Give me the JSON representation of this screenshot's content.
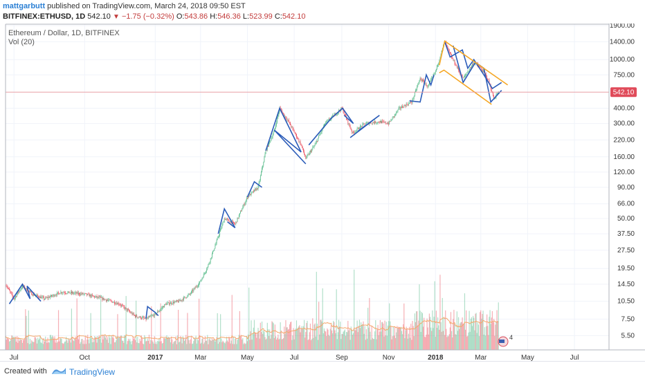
{
  "header": {
    "author": "mattgarbutt",
    "published": "published on TradingView.com, March 24, 2018 09:50 EST",
    "symbol": "BITFINEX:ETHUSD, 1D",
    "last": "542.10",
    "change": "−1.75 (−0.32%)",
    "o_label": "O:",
    "o": "543.86",
    "h_label": "H:",
    "h": "546.36",
    "l_label": "L:",
    "l": "523.99",
    "c_label": "C:",
    "c": "542.10"
  },
  "legend": {
    "instrument": "Ethereum / Dollar, 1D, BITFINEX",
    "volume": "Vol (20)"
  },
  "price_badge": "542.10",
  "event_badge": "4",
  "footer": {
    "created": "Created with",
    "brand": "TradingView"
  },
  "colors": {
    "up": "#53b987",
    "down": "#eb4d5c",
    "pattern": "#2a5bb8",
    "channel": "#f5a623",
    "badge": "#e04b5a",
    "ma": "#f4a86b"
  },
  "chart_data": {
    "type": "line",
    "title": "Ethereum / Dollar, 1D, BITFINEX",
    "y_scale": "log",
    "ylim": [
      4.2,
      1950
    ],
    "y_ticks": [
      1900,
      1400,
      1000,
      750,
      542.1,
      400,
      300,
      220,
      160,
      120,
      90,
      66,
      50,
      37.5,
      27.5,
      19.5,
      14.5,
      10.5,
      7.5,
      5.5
    ],
    "x_ticks": [
      "Jul",
      "Oct",
      "2017",
      "Mar",
      "May",
      "Jul",
      "Sep",
      "Nov",
      "2018",
      "Mar",
      "May",
      "Jul"
    ],
    "x_tick_dates": [
      "2016-07-01",
      "2016-10-01",
      "2017-01-01",
      "2017-03-01",
      "2017-05-01",
      "2017-07-01",
      "2017-09-01",
      "2017-11-01",
      "2018-01-01",
      "2018-03-01",
      "2018-05-01",
      "2018-07-01"
    ],
    "last_price": 542.1,
    "price_path": [
      [
        "2016-06-20",
        14.5
      ],
      [
        "2016-07-01",
        11
      ],
      [
        "2016-07-12",
        14
      ],
      [
        "2016-07-25",
        12
      ],
      [
        "2016-08-10",
        11
      ],
      [
        "2016-09-01",
        12.5
      ],
      [
        "2016-10-01",
        12
      ],
      [
        "2016-10-25",
        11
      ],
      [
        "2016-11-15",
        10
      ],
      [
        "2016-12-05",
        8
      ],
      [
        "2016-12-20",
        7.5
      ],
      [
        "2017-01-01",
        8.2
      ],
      [
        "2017-01-15",
        10
      ],
      [
        "2017-02-01",
        10.5
      ],
      [
        "2017-02-15",
        12
      ],
      [
        "2017-02-28",
        15
      ],
      [
        "2017-03-10",
        20
      ],
      [
        "2017-03-20",
        30
      ],
      [
        "2017-04-01",
        50
      ],
      [
        "2017-04-15",
        45
      ],
      [
        "2017-05-01",
        75
      ],
      [
        "2017-05-15",
        90
      ],
      [
        "2017-05-25",
        180
      ],
      [
        "2017-06-05",
        260
      ],
      [
        "2017-06-12",
        400
      ],
      [
        "2017-06-25",
        300
      ],
      [
        "2017-07-10",
        200
      ],
      [
        "2017-07-16",
        155
      ],
      [
        "2017-07-28",
        200
      ],
      [
        "2017-08-10",
        300
      ],
      [
        "2017-09-01",
        400
      ],
      [
        "2017-09-15",
        250
      ],
      [
        "2017-10-01",
        300
      ],
      [
        "2017-10-20",
        310
      ],
      [
        "2017-11-01",
        300
      ],
      [
        "2017-11-15",
        400
      ],
      [
        "2017-12-01",
        450
      ],
      [
        "2017-12-12",
        700
      ],
      [
        "2017-12-22",
        600
      ],
      [
        "2018-01-01",
        800
      ],
      [
        "2018-01-13",
        1400
      ],
      [
        "2018-01-20",
        1100
      ],
      [
        "2018-02-06",
        700
      ],
      [
        "2018-02-20",
        950
      ],
      [
        "2018-03-01",
        850
      ],
      [
        "2018-03-10",
        700
      ],
      [
        "2018-03-18",
        480
      ],
      [
        "2018-03-24",
        542.1
      ]
    ],
    "pattern_zigzags": [
      [
        [
          "2016-06-25",
          10
        ],
        [
          "2016-07-12",
          14.5
        ],
        [
          "2016-07-22",
          11
        ],
        [
          "2016-07-18",
          14
        ],
        [
          "2016-08-05",
          10.5
        ]
      ],
      [
        [
          "2016-12-20",
          7.6
        ],
        [
          "2016-12-22",
          9.5
        ],
        [
          "2017-01-01",
          8.5
        ],
        [
          "2017-01-05",
          8
        ]
      ],
      [
        [
          "2017-03-24",
          37.5
        ],
        [
          "2017-04-01",
          60
        ],
        [
          "2017-04-15",
          42
        ],
        [
          "2017-04-05",
          47
        ]
      ],
      [
        [
          "2017-05-01",
          75
        ],
        [
          "2017-05-10",
          100
        ],
        [
          "2017-05-20",
          90
        ]
      ],
      [
        [
          "2017-05-25",
          180
        ],
        [
          "2017-06-12",
          400
        ],
        [
          "2017-07-10",
          175
        ],
        [
          "2017-06-05",
          265
        ],
        [
          "2017-07-16",
          140
        ]
      ],
      [
        [
          "2017-07-20",
          200
        ],
        [
          "2017-08-18",
          330
        ],
        [
          "2017-09-02",
          400
        ],
        [
          "2017-09-16",
          300
        ],
        [
          "2017-09-04",
          350
        ]
      ],
      [
        [
          "2017-09-12",
          230
        ],
        [
          "2017-10-20",
          350
        ],
        [
          "2017-09-22",
          260
        ]
      ],
      [
        [
          "2017-11-28",
          460
        ],
        [
          "2017-12-12",
          450
        ],
        [
          "2017-12-20",
          750
        ],
        [
          "2017-12-26",
          620
        ],
        [
          "2017-12-30",
          750
        ]
      ],
      [
        [
          "2018-01-13",
          1400
        ],
        [
          "2018-01-20",
          1050
        ],
        [
          "2018-02-05",
          1200
        ],
        [
          "2018-02-12",
          850
        ],
        [
          "2018-02-20",
          1000
        ],
        [
          "2018-03-05",
          750
        ],
        [
          "2018-03-16",
          580
        ],
        [
          "2018-03-28",
          650
        ]
      ],
      [
        [
          "2018-01-24",
          1300
        ],
        [
          "2018-02-06",
          650
        ],
        [
          "2018-02-22",
          950
        ],
        [
          "2018-03-05",
          850
        ],
        [
          "2018-03-14",
          450
        ],
        [
          "2018-03-28",
          560
        ]
      ]
    ],
    "channel_lines": [
      [
        [
          "2018-01-06",
          900
        ],
        [
          "2018-01-13",
          1420
        ],
        [
          "2018-04-05",
          620
        ]
      ],
      [
        [
          "2018-01-06",
          780
        ],
        [
          "2018-01-12",
          820
        ],
        [
          "2018-03-15",
          430
        ]
      ]
    ]
  }
}
